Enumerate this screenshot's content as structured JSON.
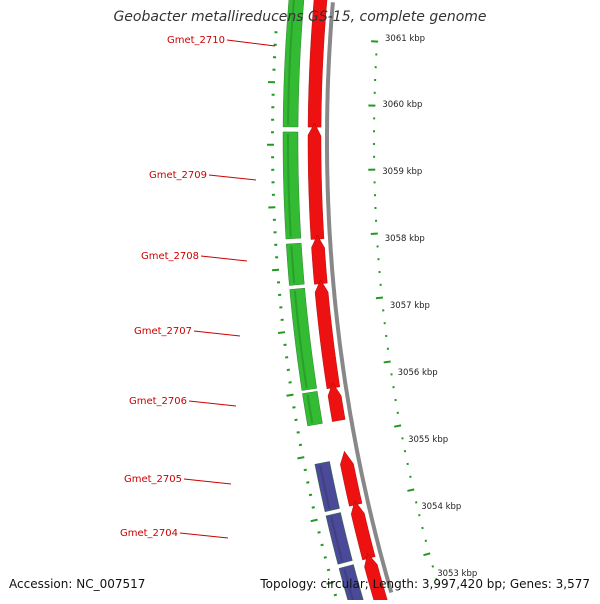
{
  "title": "Geobacter metallireducens GS-15, complete genome",
  "footer": {
    "accession": "Accession: NC_007517",
    "topology": "Topology: circular; Length: 3,997,420 bp; Genes: 3,577"
  },
  "colors": {
    "gene_label": "#cc0000",
    "cds_reverse": "#ee1111",
    "cds_forward_green": "#33bb33",
    "cds_forward_purple": "#4a4a99",
    "tick": "#229922",
    "backbone": "#888888"
  },
  "gene_labels": [
    "Gmet_2710",
    "Gmet_2709",
    "Gmet_2708",
    "Gmet_2707",
    "Gmet_2706",
    "Gmet_2705",
    "Gmet_2704"
  ],
  "scale_labels": [
    "3061 kbp",
    "3060 kbp",
    "3059 kbp",
    "3058 kbp",
    "3057 kbp",
    "3056 kbp",
    "3055 kbp",
    "3054 kbp",
    "3053 kbp"
  ]
}
